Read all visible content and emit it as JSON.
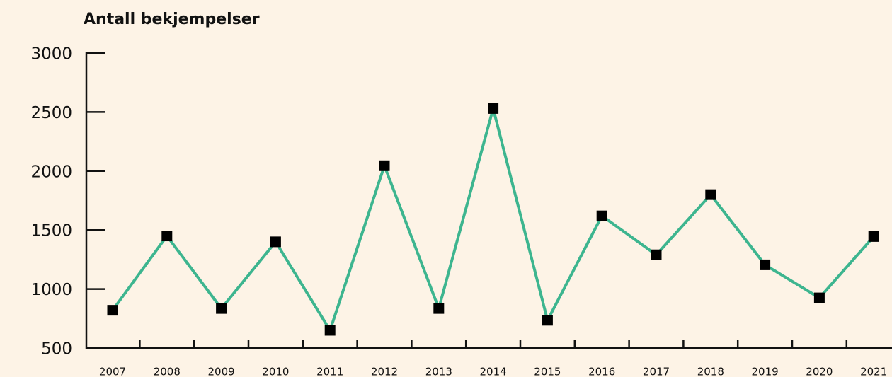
{
  "chart_data": {
    "type": "line",
    "title": "Antall bekjempelser",
    "categories": [
      "2007",
      "2008",
      "2009",
      "2010",
      "2011",
      "2012",
      "2013",
      "2014",
      "2015",
      "2016",
      "2017",
      "2018",
      "2019",
      "2020",
      "2021"
    ],
    "series": [
      {
        "name": "Antall bekjempelser",
        "color": "#3db58f",
        "values": [
          820,
          1450,
          835,
          1400,
          650,
          2045,
          835,
          2530,
          735,
          1620,
          1290,
          1800,
          1205,
          925,
          1445
        ]
      }
    ],
    "ylim": [
      500,
      3000
    ],
    "yticks": [
      500,
      1000,
      1500,
      2000,
      2500,
      3000
    ],
    "marker_color": "#000000"
  }
}
